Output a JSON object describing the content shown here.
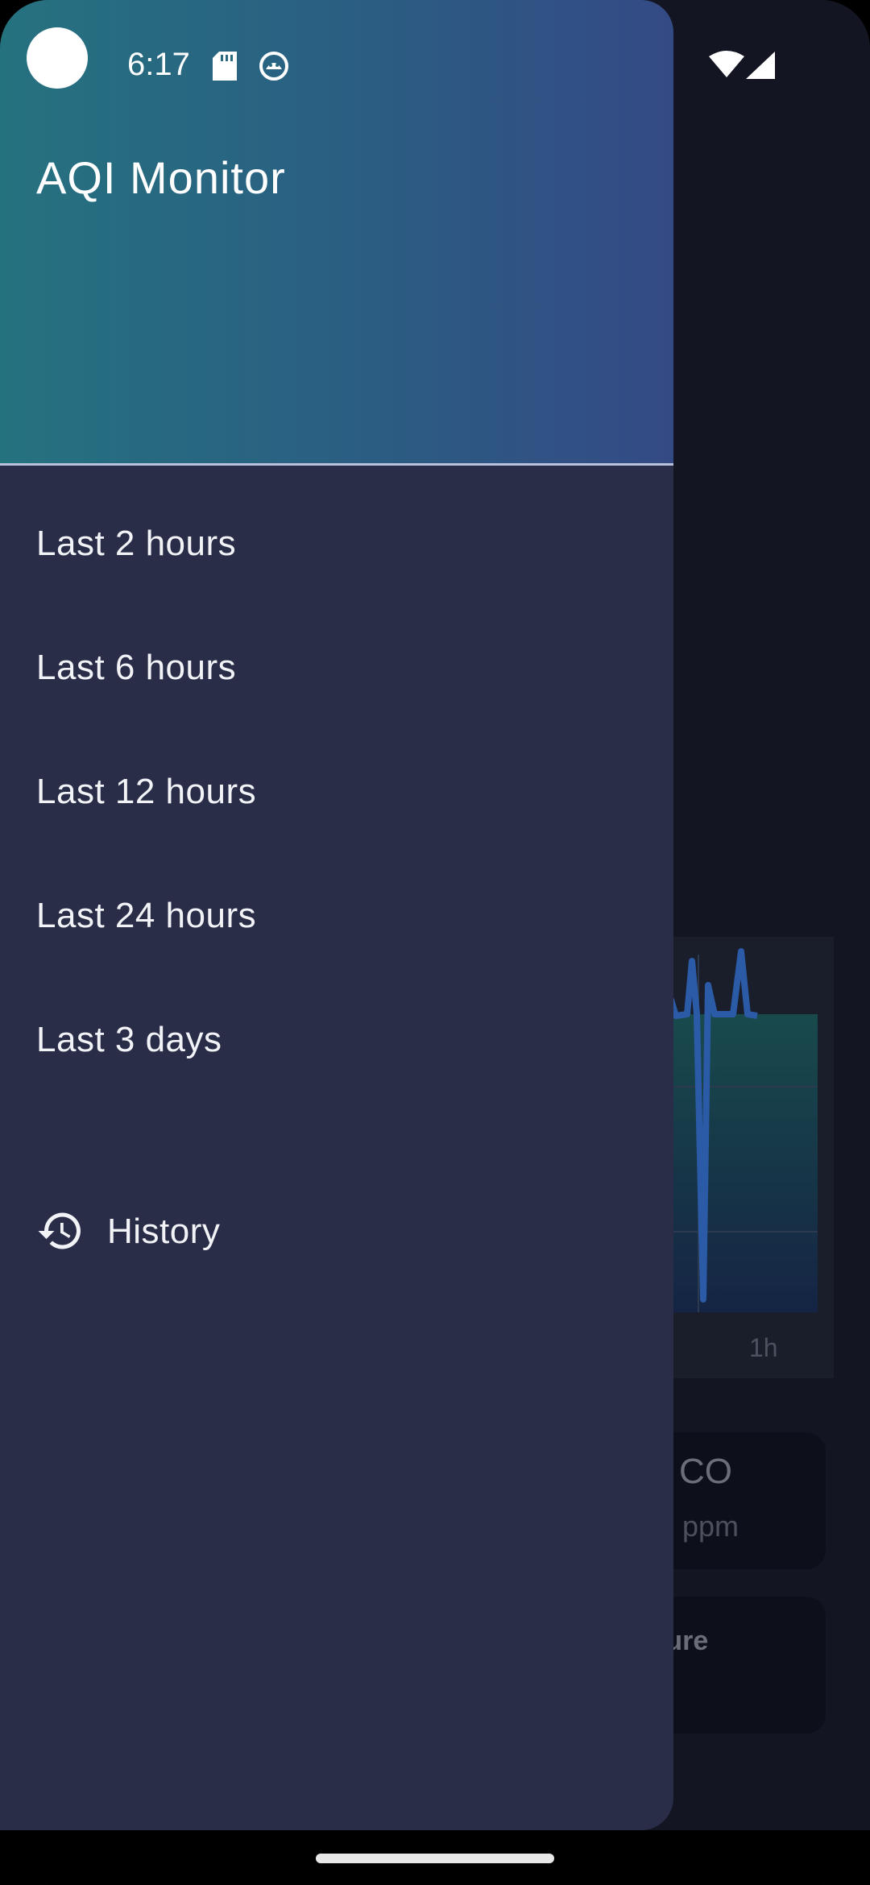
{
  "status_bar": {
    "time": "6:17",
    "icons": [
      "sd-card-icon",
      "android-bot-icon",
      "wifi-icon",
      "signal-icon"
    ]
  },
  "drawer": {
    "title": "AQI Monitor",
    "items": [
      {
        "label": "Last 2 hours"
      },
      {
        "label": "Last 6 hours"
      },
      {
        "label": "Last 12 hours"
      },
      {
        "label": "Last 24 hours"
      },
      {
        "label": "Last 3 days"
      }
    ],
    "history": {
      "label": "History",
      "icon": "history-icon"
    }
  },
  "background": {
    "chart_axis_label": "1h",
    "cards": [
      {
        "title": "CO",
        "unit": "ppm"
      },
      {
        "title": "ture"
      }
    ]
  },
  "colors": {
    "drawer_bg": "#292d48",
    "header_gradient_start": "#25727f",
    "header_gradient_end": "#344a85",
    "screen_bg": "#131522",
    "chart_line": "#2b5aa6"
  }
}
